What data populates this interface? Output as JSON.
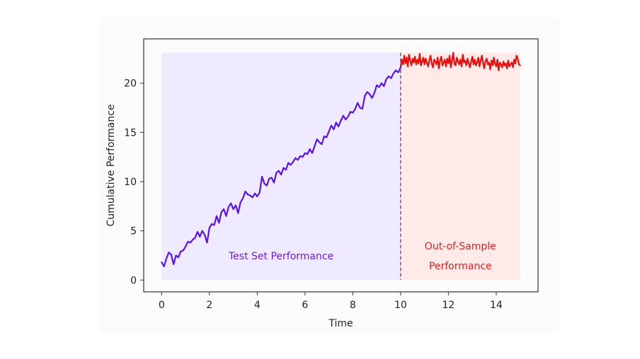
{
  "chart_data": {
    "type": "line",
    "title": "",
    "xlabel": "Time",
    "ylabel": "Cumulative Performance",
    "xlim": [
      -0.75,
      15.75
    ],
    "ylim": [
      -1.2,
      24.5
    ],
    "xticks": [
      0,
      2,
      4,
      6,
      8,
      10,
      12,
      14
    ],
    "yticks": [
      0,
      5,
      10,
      15,
      20
    ],
    "grid": false,
    "legend": "none",
    "split_x": 10,
    "regions": [
      {
        "name": "test",
        "label_lines": [
          "Test Set Performance"
        ],
        "x": [
          0,
          10
        ],
        "y": [
          0,
          23.1
        ],
        "fill": "#efeaff",
        "text_color": "#6a1ee8",
        "label_x": 5,
        "label_y": 2.1
      },
      {
        "name": "oos",
        "label_lines": [
          "Out-of-Sample",
          "Performance"
        ],
        "x": [
          10,
          15
        ],
        "y": [
          0,
          23.1
        ],
        "fill": "#ffeaea",
        "text_color": "#e8201c",
        "label_x": 12.5,
        "label_y": 3.1,
        "label_y2": 1.1
      }
    ],
    "series": [
      {
        "color": "#5b12e8",
        "x": [
          0,
          0.1,
          0.2,
          0.3,
          0.4,
          0.5,
          0.6,
          0.7,
          0.8,
          0.9,
          1.0,
          1.1,
          1.2,
          1.3,
          1.4,
          1.5,
          1.6,
          1.7,
          1.8,
          1.9,
          2.0,
          2.1,
          2.2,
          2.3,
          2.4,
          2.5,
          2.6,
          2.7,
          2.8,
          2.9,
          3.0,
          3.1,
          3.2,
          3.3,
          3.4,
          3.5,
          3.6,
          3.7,
          3.8,
          3.9,
          4.0,
          4.1,
          4.2,
          4.3,
          4.4,
          4.5,
          4.6,
          4.7,
          4.8,
          4.9,
          5.0,
          5.1,
          5.2,
          5.3,
          5.4,
          5.5,
          5.6,
          5.7,
          5.8,
          5.9,
          6.0,
          6.1,
          6.2,
          6.3,
          6.4,
          6.5,
          6.6,
          6.7,
          6.8,
          6.9,
          7.0,
          7.1,
          7.2,
          7.3,
          7.4,
          7.5,
          7.6,
          7.7,
          7.8,
          7.9,
          8.0,
          8.1,
          8.2,
          8.3,
          8.4,
          8.5,
          8.6,
          8.7,
          8.8,
          8.9,
          9.0,
          9.1,
          9.2,
          9.3,
          9.4,
          9.5,
          9.6,
          9.7,
          9.8,
          9.9,
          10.0
        ],
        "y": [
          1.8,
          1.4,
          2.2,
          2.8,
          2.6,
          1.6,
          2.5,
          2.3,
          2.9,
          3.0,
          3.4,
          3.9,
          3.8,
          4.1,
          4.3,
          4.9,
          4.4,
          5.0,
          4.6,
          3.8,
          5.3,
          5.7,
          5.6,
          6.5,
          5.8,
          6.9,
          7.2,
          6.5,
          7.4,
          7.8,
          7.2,
          7.6,
          6.8,
          7.9,
          8.3,
          9.0,
          8.7,
          8.6,
          8.4,
          8.8,
          8.5,
          8.9,
          10.5,
          9.8,
          9.6,
          10.3,
          10.4,
          9.9,
          10.9,
          11.1,
          10.7,
          11.4,
          11.2,
          11.9,
          11.7,
          12.0,
          12.4,
          12.2,
          12.6,
          12.5,
          12.9,
          12.8,
          13.3,
          12.9,
          13.6,
          14.3,
          14.0,
          13.8,
          14.6,
          14.5,
          15.1,
          15.7,
          15.3,
          16.0,
          15.6,
          16.2,
          16.7,
          16.3,
          16.6,
          17.1,
          17.0,
          17.4,
          18.0,
          17.5,
          17.4,
          18.7,
          19.1,
          18.9,
          18.5,
          19.0,
          19.8,
          19.6,
          20.0,
          19.7,
          20.4,
          20.7,
          20.5,
          21.0,
          21.3,
          21.1,
          21.6
        ]
      },
      {
        "color": "#e80f0f",
        "x": [
          10.0,
          10.05,
          10.1,
          10.15,
          10.2,
          10.25,
          10.3,
          10.35,
          10.4,
          10.45,
          10.5,
          10.55,
          10.6,
          10.65,
          10.7,
          10.75,
          10.8,
          10.85,
          10.9,
          10.95,
          11.0,
          11.05,
          11.1,
          11.15,
          11.2,
          11.25,
          11.3,
          11.35,
          11.4,
          11.45,
          11.5,
          11.55,
          11.6,
          11.65,
          11.7,
          11.75,
          11.8,
          11.85,
          11.9,
          11.95,
          12.0,
          12.05,
          12.1,
          12.15,
          12.2,
          12.25,
          12.3,
          12.35,
          12.4,
          12.45,
          12.5,
          12.55,
          12.6,
          12.65,
          12.7,
          12.75,
          12.8,
          12.85,
          12.9,
          12.95,
          13.0,
          13.05,
          13.1,
          13.15,
          13.2,
          13.25,
          13.3,
          13.35,
          13.4,
          13.45,
          13.5,
          13.55,
          13.6,
          13.65,
          13.7,
          13.75,
          13.8,
          13.85,
          13.9,
          13.95,
          14.0,
          14.05,
          14.1,
          14.15,
          14.2,
          14.25,
          14.3,
          14.35,
          14.4,
          14.45,
          14.5,
          14.55,
          14.6,
          14.65,
          14.7,
          14.75,
          14.8,
          14.85,
          14.9,
          14.95,
          15.0
        ],
        "y": [
          21.6,
          22.4,
          21.9,
          22.8,
          22.0,
          22.6,
          21.7,
          22.9,
          22.3,
          21.8,
          22.5,
          22.1,
          22.7,
          21.9,
          22.4,
          22.0,
          23.0,
          21.8,
          22.2,
          22.6,
          21.9,
          22.5,
          22.1,
          21.7,
          22.3,
          22.8,
          22.0,
          21.6,
          22.4,
          22.2,
          21.9,
          22.6,
          21.5,
          22.3,
          22.7,
          21.8,
          22.1,
          22.4,
          21.7,
          22.5,
          22.0,
          22.8,
          21.6,
          22.3,
          23.1,
          22.0,
          21.8,
          22.6,
          22.2,
          21.9,
          22.4,
          21.7,
          22.9,
          22.1,
          22.3,
          21.8,
          22.5,
          22.0,
          21.6,
          22.2,
          22.7,
          21.9,
          22.4,
          21.8,
          22.1,
          22.6,
          21.7,
          22.3,
          22.8,
          22.0,
          21.5,
          22.2,
          22.5,
          21.9,
          22.1,
          21.4,
          22.3,
          21.8,
          22.6,
          22.0,
          21.7,
          22.4,
          21.3,
          22.1,
          21.9,
          21.6,
          22.2,
          21.8,
          22.0,
          21.5,
          22.3,
          21.7,
          21.9,
          22.1,
          21.6,
          22.4,
          22.0,
          22.8,
          22.5,
          21.9,
          21.8
        ]
      }
    ]
  }
}
